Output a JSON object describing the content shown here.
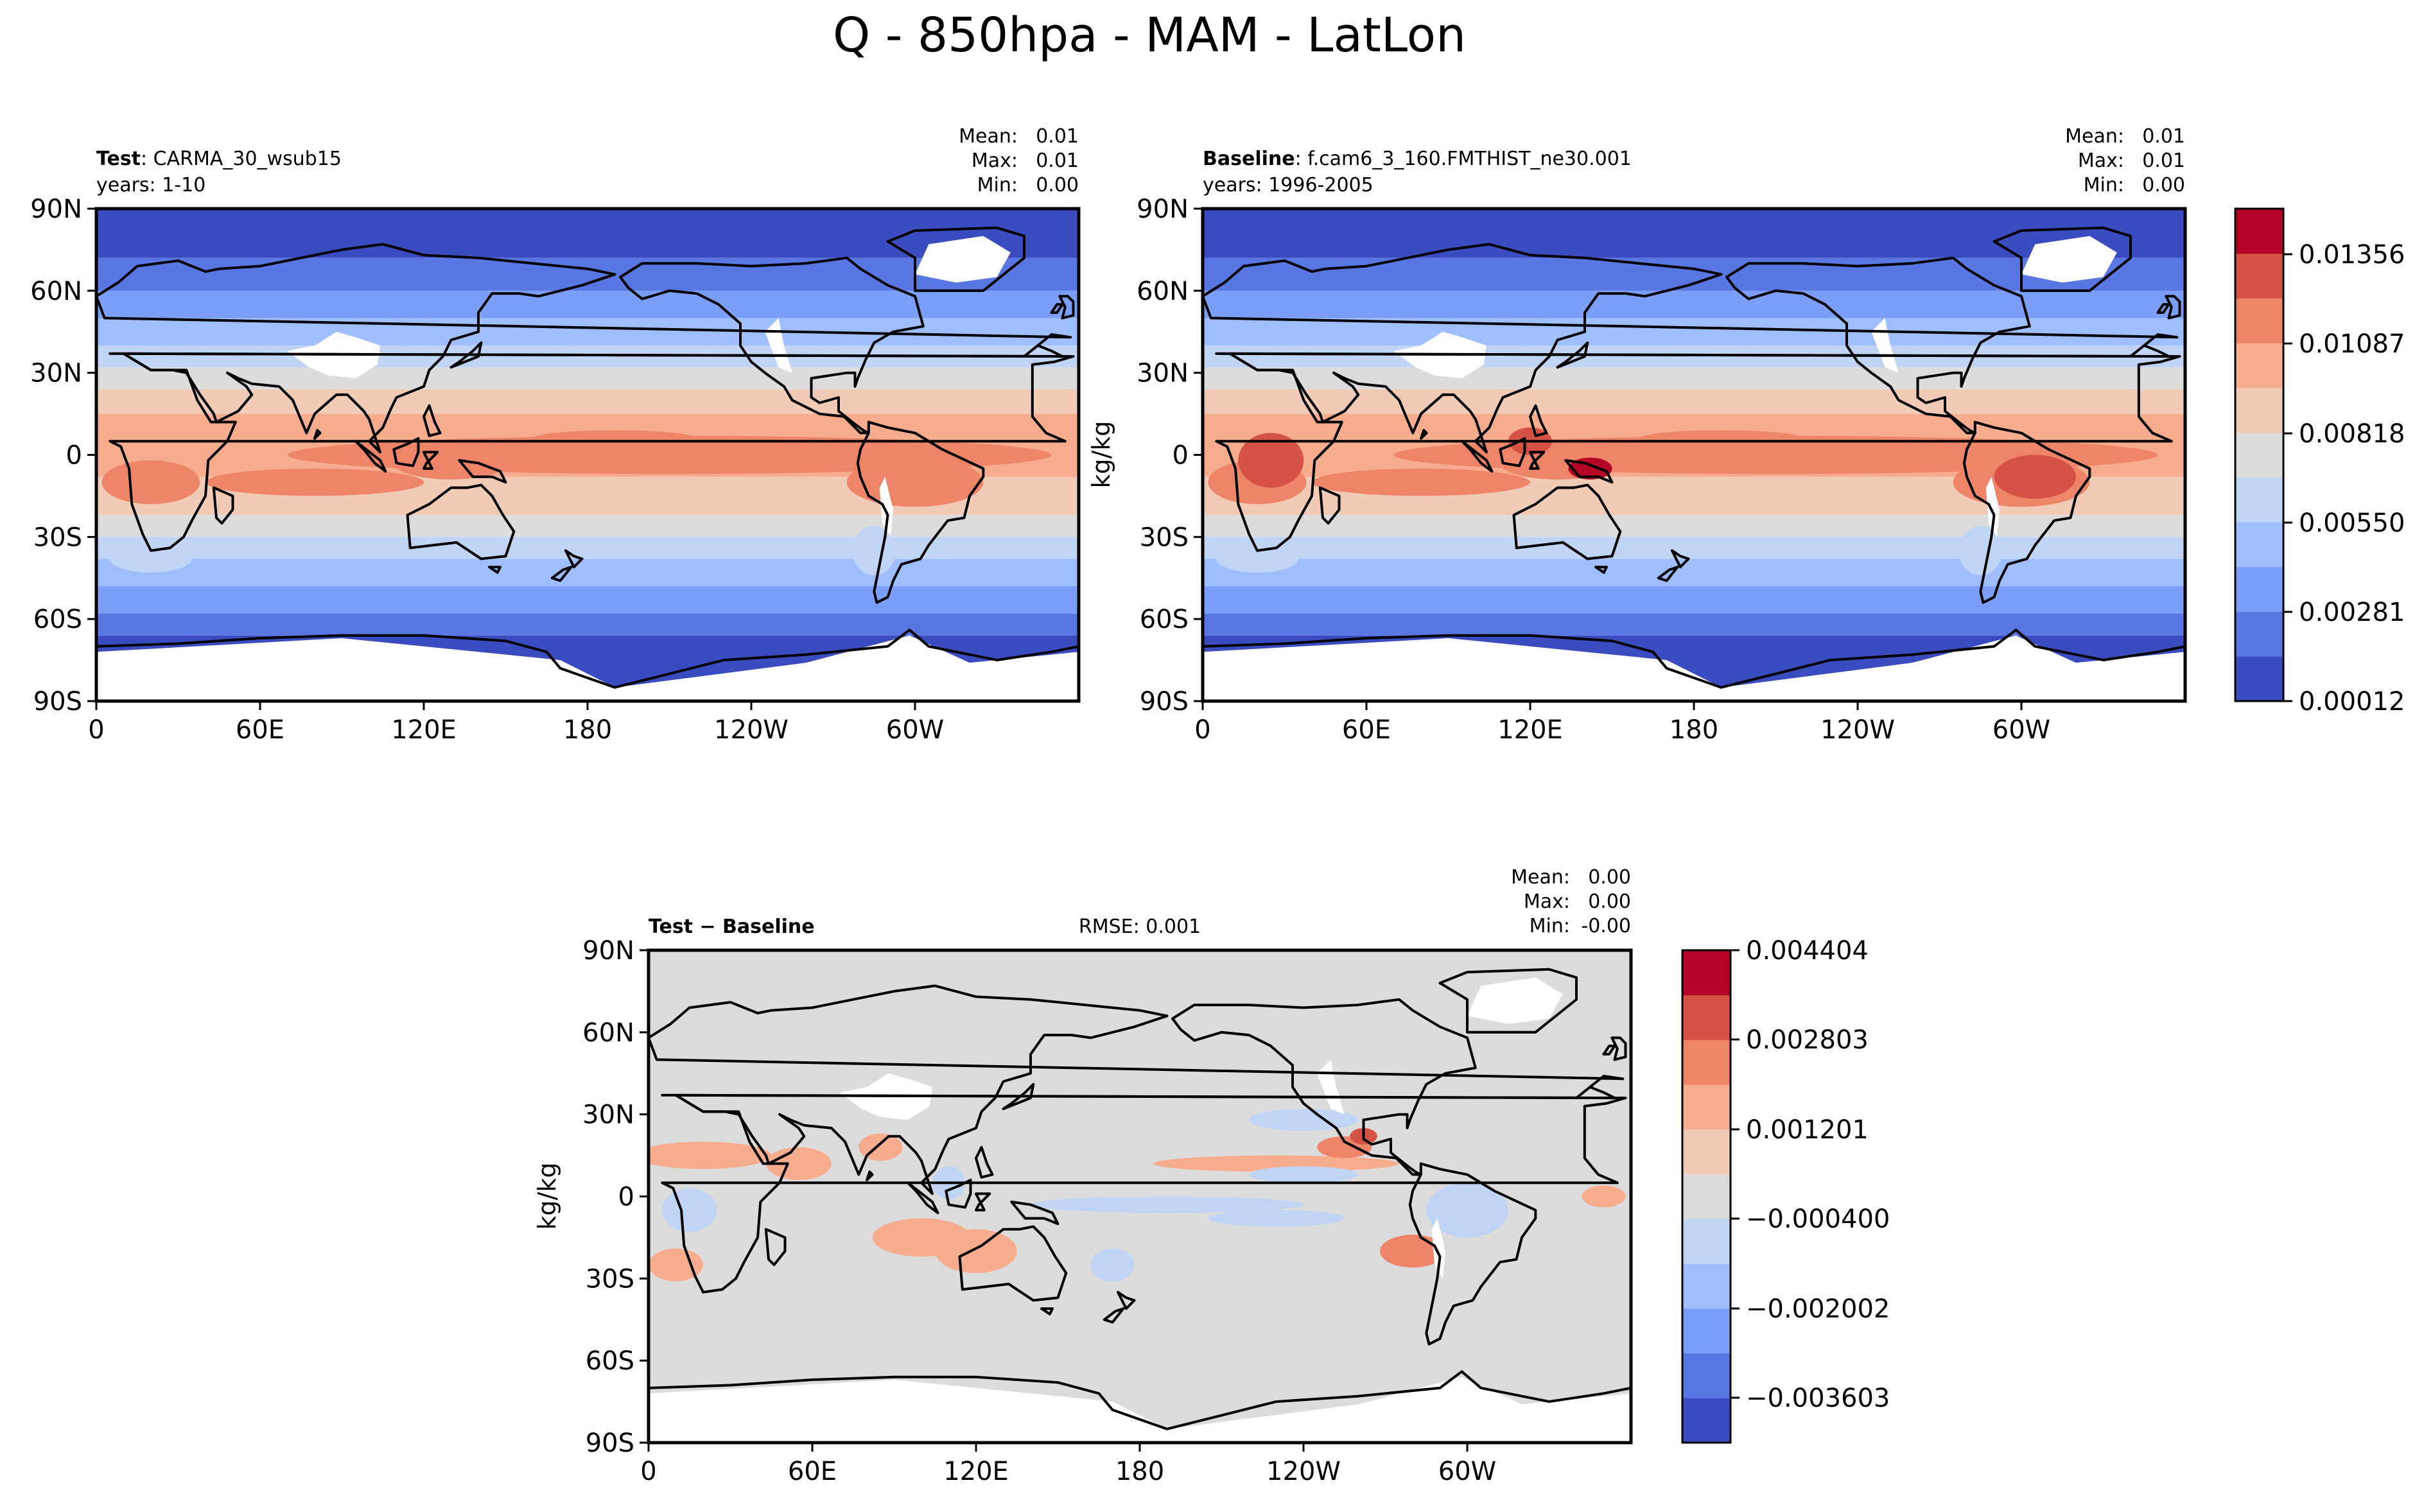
{
  "suptitle": "Q - 850hpa - MAM - LatLon",
  "lat_ticks": [
    "90N",
    "60N",
    "30N",
    "0",
    "30S",
    "60S",
    "90S"
  ],
  "lon_ticks": [
    "0",
    "60E",
    "120E",
    "180",
    "120W",
    "60W"
  ],
  "colors": {
    "levels": [
      "#3a4cc0",
      "#5977e3",
      "#7b9ff9",
      "#9ebeff",
      "#c0d4f5",
      "#dddcdc",
      "#f2cbb7",
      "#f7ac8e",
      "#ee8468",
      "#d65244",
      "#b40426"
    ],
    "land_outline": "#000000",
    "missing": "#ffffff"
  },
  "panels": {
    "test": {
      "name_bold": "Test",
      "name_rest": ": CARMA_30_wsub15",
      "years": "years: 1-10",
      "stats": [
        {
          "label": "Mean:",
          "value": "0.01"
        },
        {
          "label": "Max:",
          "value": "0.01"
        },
        {
          "label": "Min:",
          "value": "0.00"
        }
      ]
    },
    "baseline": {
      "name_bold": "Baseline",
      "name_rest": ": f.cam6_3_160.FMTHIST_ne30.001",
      "years": "years: 1996-2005",
      "stats": [
        {
          "label": "Mean:",
          "value": "0.01"
        },
        {
          "label": "Max:",
          "value": "0.01"
        },
        {
          "label": "Min:",
          "value": "0.00"
        }
      ]
    },
    "diff": {
      "name_bold": "Test − Baseline",
      "rmse": "RMSE: 0.001",
      "stats": [
        {
          "label": "Mean:",
          "value": "0.00"
        },
        {
          "label": "Max:",
          "value": "0.00"
        },
        {
          "label": "Min:",
          "value": "-0.00"
        }
      ]
    }
  },
  "colorbar_top": {
    "label": "kg/kg",
    "ticks": [
      "0.01356",
      "0.01087",
      "0.00818",
      "0.00550",
      "0.00281",
      "0.00012"
    ]
  },
  "colorbar_diff": {
    "label": "kg/kg",
    "ticks": [
      "0.004404",
      "0.002803",
      "0.001201",
      "−0.000400",
      "−0.002002",
      "−0.003603"
    ]
  },
  "chart_data": [
    {
      "type": "heatmap",
      "title": "Test: CARMA_30_wsub15",
      "xlabel": "",
      "ylabel": "",
      "xlim": [
        0,
        360
      ],
      "ylim": [
        -90,
        90
      ],
      "x_ticklabels": [
        "0",
        "60E",
        "120E",
        "180",
        "120W",
        "60W"
      ],
      "y_ticklabels": [
        "90N",
        "60N",
        "30N",
        "0",
        "30S",
        "60S",
        "90S"
      ],
      "colorbar_range": [
        0.00012,
        0.01491
      ],
      "note_values": {
        "mean": 0.01,
        "max": 0.01,
        "min": 0.0
      }
    },
    {
      "type": "heatmap",
      "title": "Baseline: f.cam6_3_160.FMTHIST_ne30.001",
      "xlabel": "",
      "ylabel": "",
      "xlim": [
        0,
        360
      ],
      "ylim": [
        -90,
        90
      ],
      "x_ticklabels": [
        "0",
        "60E",
        "120E",
        "180",
        "120W",
        "60W"
      ],
      "y_ticklabels": [
        "90N",
        "60N",
        "30N",
        "0",
        "30S",
        "60S",
        "90S"
      ],
      "colorbar_ticks": [
        0.01356,
        0.01087,
        0.00818,
        0.0055,
        0.00281,
        0.00012
      ],
      "note_values": {
        "mean": 0.01,
        "max": 0.01,
        "min": 0.0
      }
    },
    {
      "type": "heatmap",
      "title": "Test − Baseline",
      "xlabel": "",
      "ylabel": "kg/kg",
      "xlim": [
        0,
        360
      ],
      "ylim": [
        -90,
        90
      ],
      "x_ticklabels": [
        "0",
        "60E",
        "120E",
        "180",
        "120W",
        "60W"
      ],
      "y_ticklabels": [
        "90N",
        "60N",
        "30N",
        "0",
        "30S",
        "60S",
        "90S"
      ],
      "colorbar_ticks": [
        0.004404,
        0.002803,
        0.001201,
        -0.0004,
        -0.002002,
        -0.003603
      ],
      "rmse": 0.001,
      "note_values": {
        "mean": 0.0,
        "max": 0.0,
        "min": -0.0
      }
    }
  ]
}
